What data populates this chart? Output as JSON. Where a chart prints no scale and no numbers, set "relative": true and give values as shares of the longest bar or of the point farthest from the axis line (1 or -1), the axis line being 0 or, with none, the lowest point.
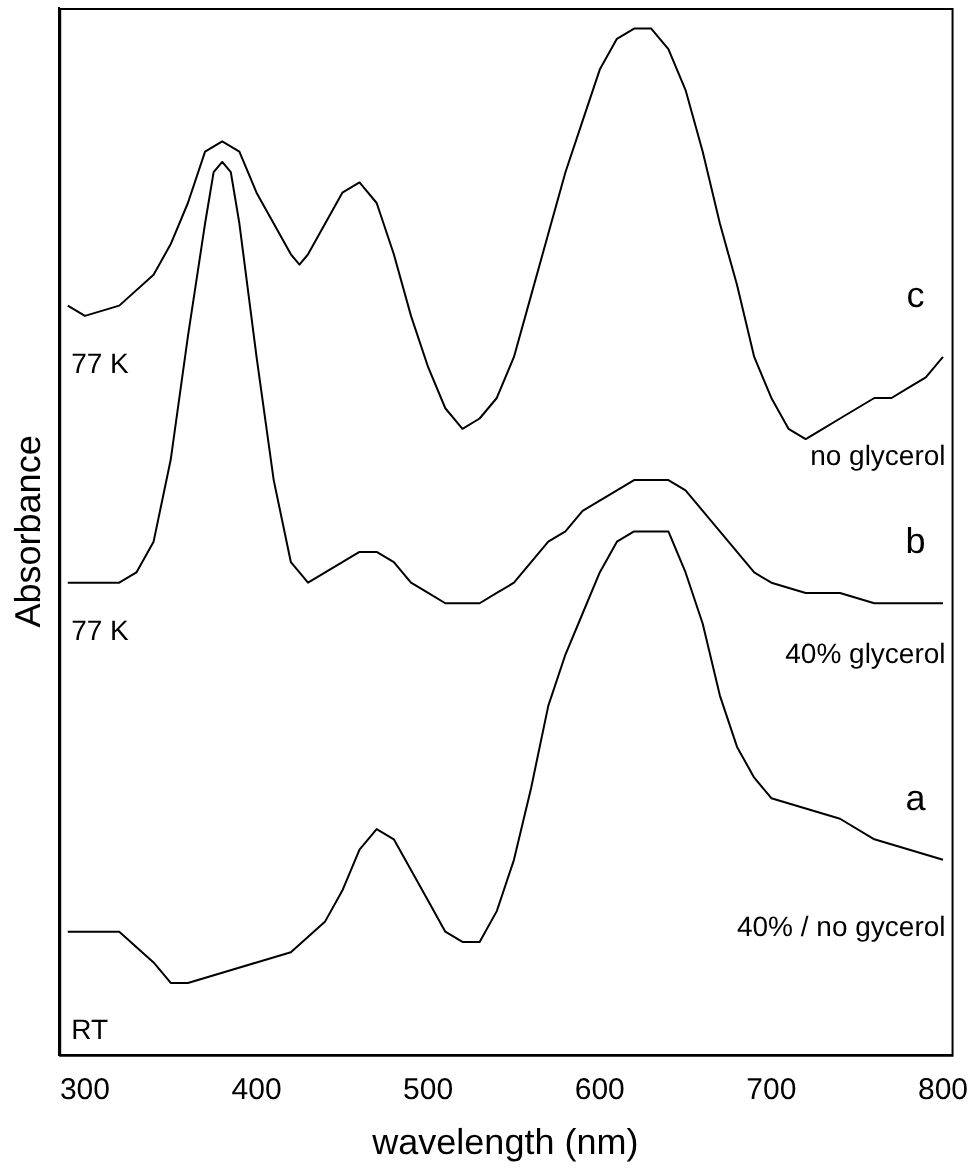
{
  "chart_data": {
    "type": "line",
    "relative": true,
    "xlabel": "wavelength (nm)",
    "ylabel": "Absorbance",
    "xlim": [
      285,
      805
    ],
    "xticks": [
      300,
      400,
      500,
      600,
      700,
      800
    ],
    "grid": false,
    "legend": false,
    "marker": "none",
    "line_style": "solid",
    "series": [
      {
        "name": "c",
        "color": "#000000",
        "x": [
          290,
          300,
          320,
          340,
          350,
          360,
          370,
          380,
          390,
          400,
          410,
          420,
          425,
          430,
          440,
          450,
          460,
          470,
          480,
          490,
          500,
          510,
          520,
          530,
          540,
          550,
          560,
          570,
          580,
          590,
          600,
          610,
          620,
          630,
          640,
          650,
          660,
          670,
          680,
          690,
          700,
          710,
          720,
          730,
          740,
          750,
          760,
          770,
          780,
          790,
          800
        ],
        "values": [
          0.73,
          0.72,
          0.73,
          0.76,
          0.79,
          0.83,
          0.88,
          0.89,
          0.88,
          0.84,
          0.81,
          0.78,
          0.77,
          0.78,
          0.81,
          0.84,
          0.85,
          0.83,
          0.78,
          0.72,
          0.67,
          0.63,
          0.61,
          0.62,
          0.64,
          0.68,
          0.74,
          0.8,
          0.86,
          0.91,
          0.96,
          0.99,
          1,
          1,
          0.98,
          0.94,
          0.88,
          0.81,
          0.75,
          0.68,
          0.64,
          0.61,
          0.6,
          0.61,
          0.62,
          0.63,
          0.64,
          0.64,
          0.65,
          0.66,
          0.68
        ]
      },
      {
        "name": "b",
        "color": "#000000",
        "x": [
          290,
          300,
          320,
          330,
          340,
          350,
          360,
          370,
          375,
          380,
          385,
          390,
          400,
          410,
          420,
          430,
          440,
          450,
          460,
          470,
          480,
          490,
          500,
          510,
          520,
          530,
          540,
          550,
          560,
          570,
          580,
          590,
          600,
          610,
          620,
          630,
          640,
          650,
          660,
          670,
          680,
          690,
          700,
          720,
          740,
          760,
          780,
          800
        ],
        "values": [
          0.46,
          0.46,
          0.46,
          0.47,
          0.5,
          0.58,
          0.7,
          0.81,
          0.86,
          0.87,
          0.86,
          0.81,
          0.68,
          0.56,
          0.48,
          0.46,
          0.47,
          0.48,
          0.49,
          0.49,
          0.48,
          0.46,
          0.45,
          0.44,
          0.44,
          0.44,
          0.45,
          0.46,
          0.48,
          0.5,
          0.51,
          0.53,
          0.54,
          0.55,
          0.56,
          0.56,
          0.56,
          0.55,
          0.53,
          0.51,
          0.49,
          0.47,
          0.46,
          0.45,
          0.45,
          0.44,
          0.44,
          0.44
        ]
      },
      {
        "name": "a",
        "color": "#000000",
        "x": [
          290,
          300,
          320,
          340,
          350,
          360,
          380,
          400,
          420,
          440,
          450,
          460,
          470,
          480,
          490,
          500,
          510,
          520,
          530,
          540,
          550,
          560,
          570,
          580,
          590,
          600,
          610,
          620,
          630,
          640,
          650,
          660,
          670,
          680,
          690,
          700,
          720,
          740,
          760,
          780,
          800
        ],
        "values": [
          0.12,
          0.12,
          0.12,
          0.09,
          0.07,
          0.07,
          0.08,
          0.09,
          0.1,
          0.13,
          0.16,
          0.2,
          0.22,
          0.21,
          0.18,
          0.15,
          0.12,
          0.11,
          0.11,
          0.14,
          0.19,
          0.26,
          0.34,
          0.39,
          0.43,
          0.47,
          0.5,
          0.51,
          0.51,
          0.51,
          0.47,
          0.42,
          0.35,
          0.3,
          0.27,
          0.25,
          0.24,
          0.23,
          0.21,
          0.2,
          0.19
        ]
      }
    ],
    "annotations": [
      "77 K",
      "no glycerol",
      "77 K",
      "40% glycerol",
      "RT",
      "40% / no gycerol"
    ]
  }
}
